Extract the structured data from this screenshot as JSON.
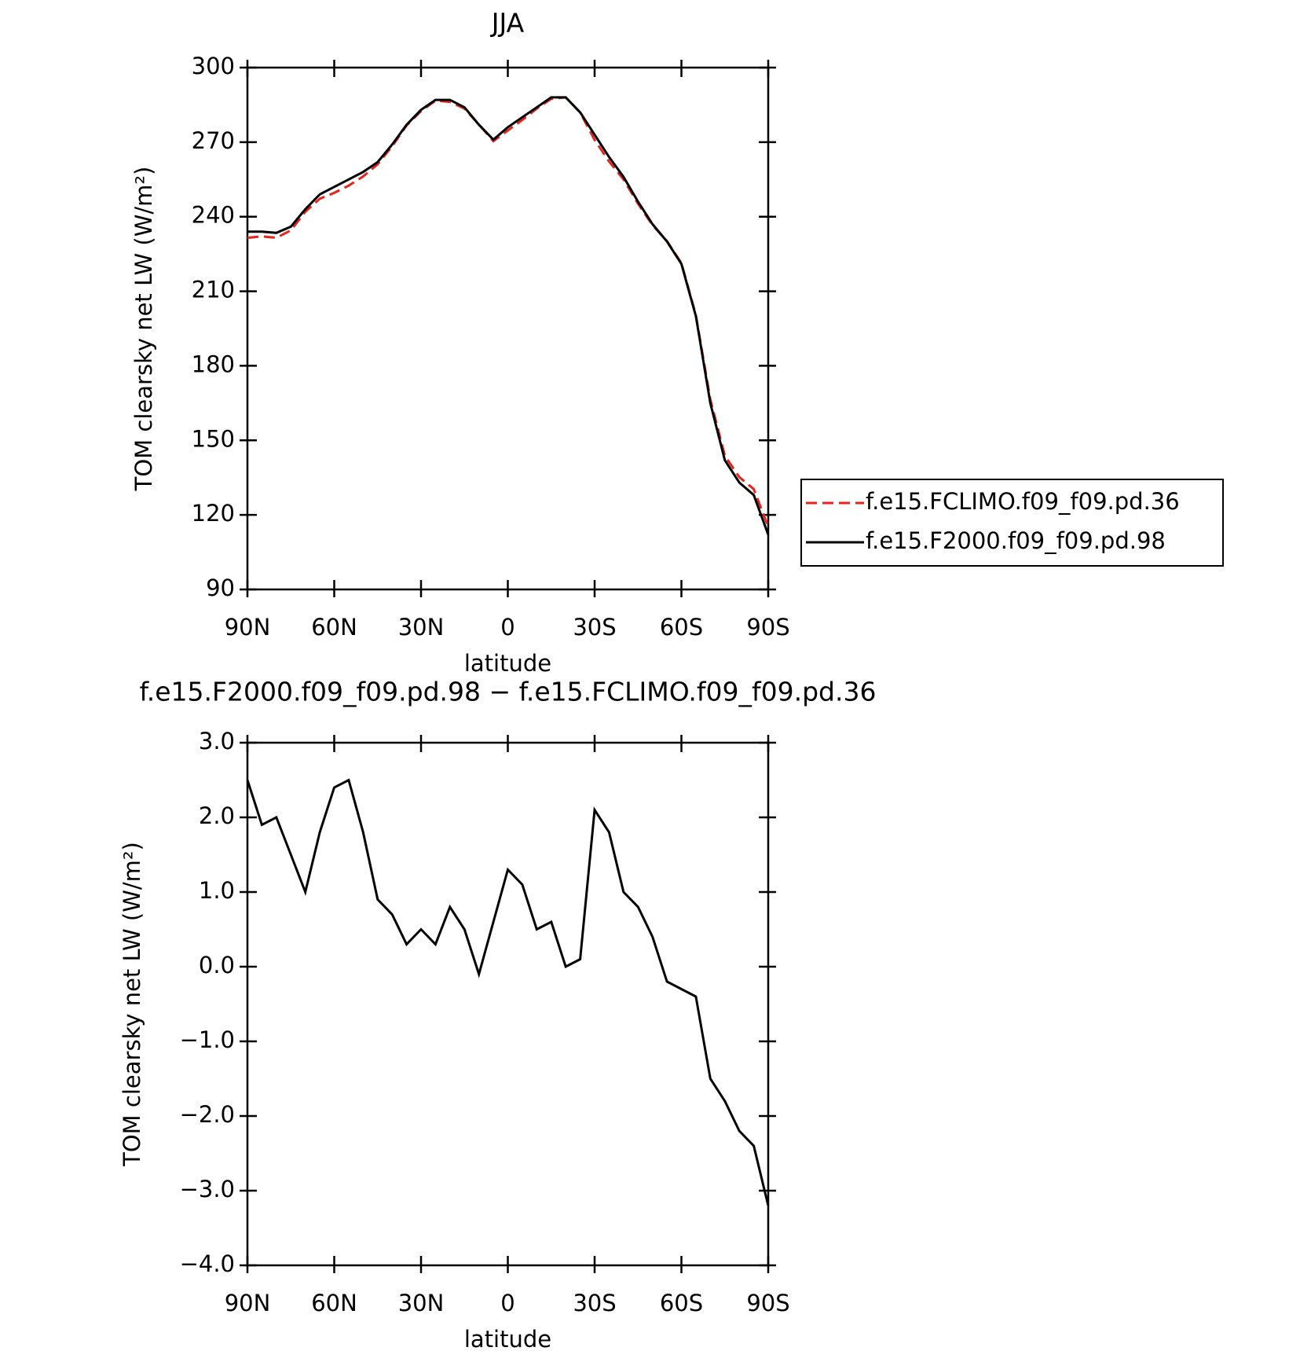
{
  "chart_data": [
    {
      "type": "line",
      "title": "JJA",
      "xlabel": "latitude",
      "ylabel": "TOM clearsky net LW (W/m²)",
      "x": [
        90,
        85,
        80,
        75,
        70,
        65,
        60,
        55,
        50,
        45,
        40,
        35,
        30,
        25,
        20,
        15,
        10,
        5,
        0,
        -5,
        -10,
        -15,
        -20,
        -25,
        -30,
        -35,
        -40,
        -45,
        -50,
        -55,
        -60,
        -65,
        -70,
        -75,
        -80,
        -85,
        -90
      ],
      "xlim": [
        90,
        -90
      ],
      "xticks": [
        {
          "value": 90,
          "label": "90N"
        },
        {
          "value": 60,
          "label": "60N"
        },
        {
          "value": 30,
          "label": "30N"
        },
        0,
        {
          "value": -30,
          "label": "30S"
        },
        {
          "value": -60,
          "label": "60S"
        },
        {
          "value": -90,
          "label": "90S"
        }
      ],
      "ylim": [
        90,
        300
      ],
      "yticks": [
        90,
        120,
        150,
        180,
        210,
        240,
        270,
        300
      ],
      "legend": "right",
      "series": [
        {
          "name": "f.e15.FCLIMO.f09_f09.pd.36",
          "color": "#e8231c",
          "dash": true,
          "values": [
            231.5,
            232.1,
            231.5,
            234.5,
            242,
            247.2,
            249.6,
            252.5,
            256.2,
            261.1,
            268.3,
            276.7,
            282.5,
            286.7,
            286.2,
            283.5,
            277.1,
            270.4,
            274.7,
            278.9,
            283.5,
            287.4,
            288,
            281.9,
            270.9,
            262.2,
            255,
            245.2,
            236.6,
            230.2,
            221.3,
            200.4,
            166.5,
            143.8,
            135.2,
            130.4,
            115.2
          ]
        },
        {
          "name": "f.e15.F2000.f09_f09.pd.98",
          "color": "#000000",
          "dash": false,
          "values": [
            234,
            234,
            233.5,
            236,
            243,
            249,
            252,
            255,
            258,
            262,
            269,
            277,
            283,
            287,
            287,
            284,
            277,
            271,
            276,
            280,
            284,
            288,
            288,
            282,
            273,
            264,
            256,
            246,
            237,
            230,
            221,
            200,
            165,
            142,
            133,
            128,
            112
          ]
        }
      ]
    },
    {
      "type": "line",
      "title": "f.e15.F2000.f09_f09.pd.98 − f.e15.FCLIMO.f09_f09.pd.36",
      "xlabel": "latitude",
      "ylabel": "TOM clearsky net LW (W/m²)",
      "x": [
        90,
        85,
        80,
        75,
        70,
        65,
        60,
        55,
        50,
        45,
        40,
        35,
        30,
        25,
        20,
        15,
        10,
        5,
        0,
        -5,
        -10,
        -15,
        -20,
        -25,
        -30,
        -35,
        -40,
        -45,
        -50,
        -55,
        -60,
        -65,
        -70,
        -75,
        -80,
        -85,
        -90
      ],
      "xlim": [
        90,
        -90
      ],
      "xticks": [
        {
          "value": 90,
          "label": "90N"
        },
        {
          "value": 60,
          "label": "60N"
        },
        {
          "value": 30,
          "label": "30N"
        },
        0,
        {
          "value": -30,
          "label": "30S"
        },
        {
          "value": -60,
          "label": "60S"
        },
        {
          "value": -90,
          "label": "90S"
        }
      ],
      "ylim": [
        -4,
        3
      ],
      "yticks": [
        {
          "value": -4,
          "label": "−4.0"
        },
        {
          "value": -3,
          "label": "−3.0"
        },
        {
          "value": -2,
          "label": "−2.0"
        },
        {
          "value": -1,
          "label": "−1.0"
        },
        {
          "value": 0,
          "label": "0.0"
        },
        {
          "value": 1,
          "label": "1.0"
        },
        {
          "value": 2,
          "label": "2.0"
        },
        {
          "value": 3,
          "label": "3.0"
        }
      ],
      "series": [
        {
          "color": "#000000",
          "dash": false,
          "values": [
            2.5,
            1.9,
            2.0,
            1.5,
            1.0,
            1.8,
            2.4,
            2.5,
            1.8,
            0.9,
            0.7,
            0.3,
            0.5,
            0.3,
            0.8,
            0.5,
            -0.1,
            0.6,
            1.3,
            1.1,
            0.5,
            0.6,
            0.0,
            0.1,
            2.1,
            1.8,
            1.0,
            0.8,
            0.4,
            -0.2,
            -0.3,
            -0.4,
            -1.5,
            -1.8,
            -2.2,
            -2.4,
            -3.2
          ]
        }
      ]
    }
  ]
}
